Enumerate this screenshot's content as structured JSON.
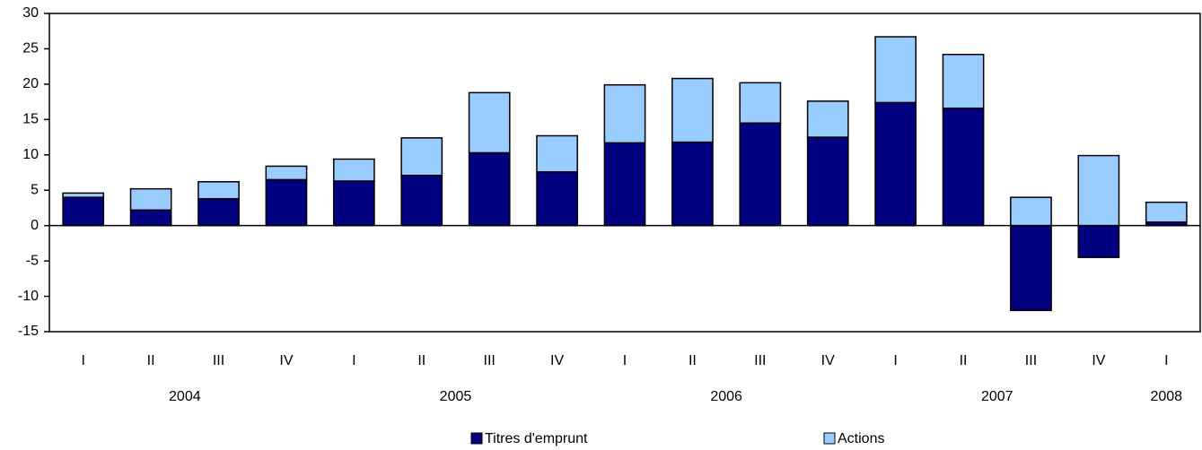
{
  "chart_data": {
    "type": "bar",
    "stacked": true,
    "groups": [
      {
        "label": "2004",
        "categories": [
          "I",
          "II",
          "III",
          "IV"
        ]
      },
      {
        "label": "2005",
        "categories": [
          "I",
          "II",
          "III",
          "IV"
        ]
      },
      {
        "label": "2006",
        "categories": [
          "I",
          "II",
          "III",
          "IV"
        ]
      },
      {
        "label": "2007",
        "categories": [
          "I",
          "II",
          "III",
          "IV"
        ]
      },
      {
        "label": "2008",
        "categories": [
          "I"
        ]
      }
    ],
    "series": [
      {
        "name": "Titres d'emprunt",
        "color": "#000080",
        "values": [
          4.0,
          2.2,
          3.8,
          6.5,
          6.3,
          7.1,
          10.3,
          7.6,
          11.7,
          11.8,
          14.5,
          12.5,
          17.4,
          16.6,
          -12.0,
          -4.5,
          0.5
        ]
      },
      {
        "name": "Actions",
        "color": "#99ccff",
        "values": [
          0.6,
          3.0,
          2.4,
          1.9,
          3.1,
          5.3,
          8.5,
          5.1,
          8.2,
          9.0,
          5.7,
          5.1,
          9.3,
          7.6,
          4.0,
          9.9,
          2.8
        ]
      }
    ],
    "ylim": [
      -15,
      30
    ],
    "yticks": [
      -15,
      -10,
      -5,
      0,
      5,
      10,
      15,
      20,
      25,
      30
    ],
    "grid": false
  }
}
